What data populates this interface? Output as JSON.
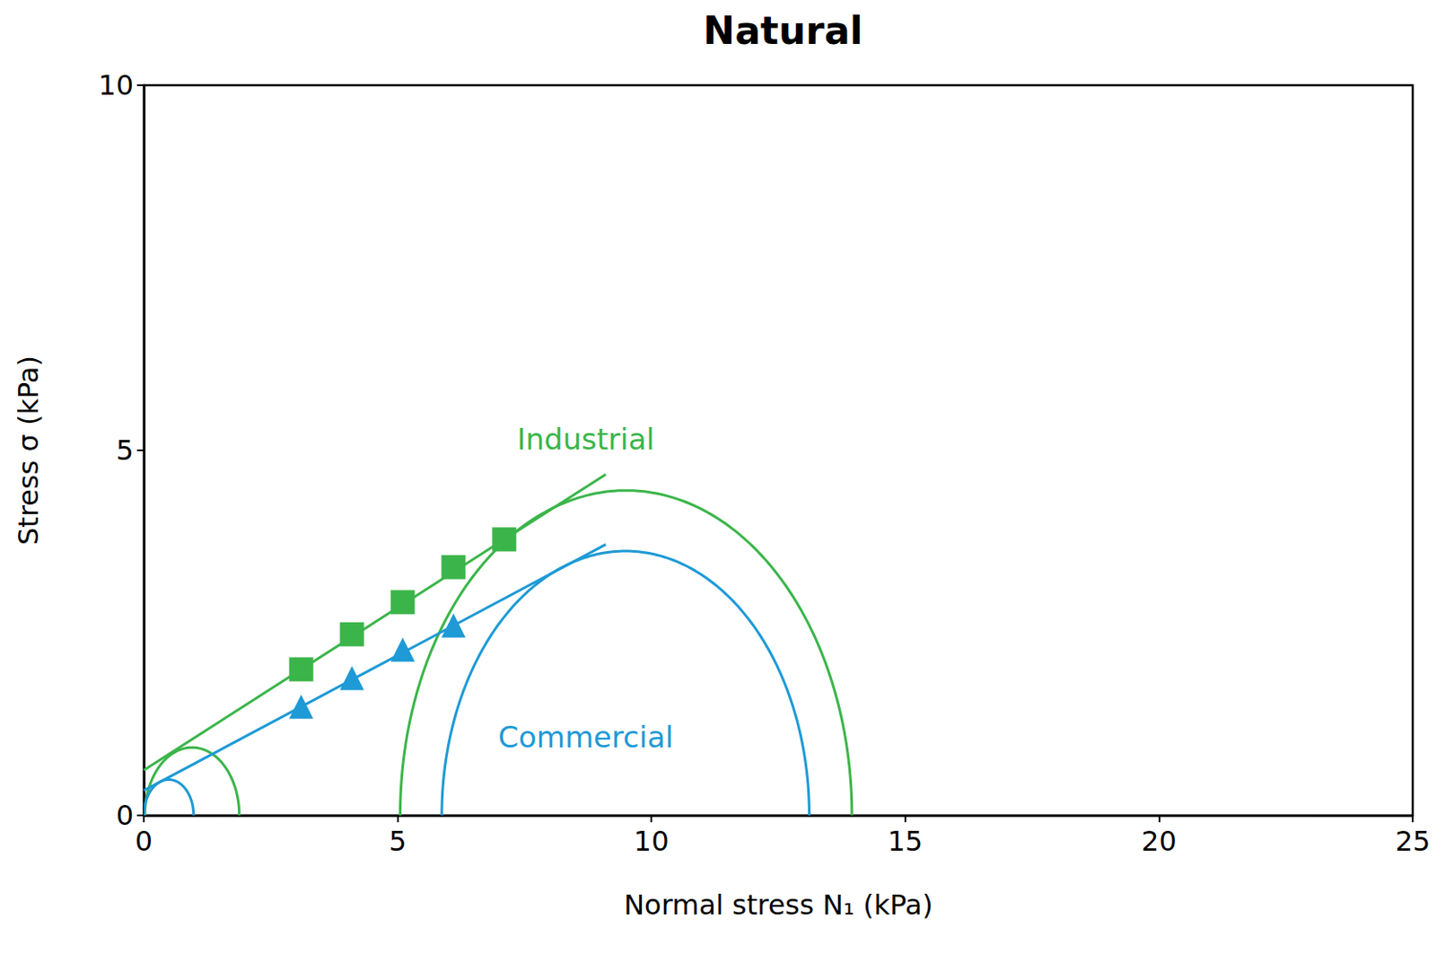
{
  "chart_data": {
    "type": "scatter",
    "title": "Natural",
    "x_label": "Normal stress N₁ (kPa)",
    "y_label": "Stress σ (kPa)",
    "xlim": [
      0,
      25
    ],
    "xticks": [
      0,
      5,
      10,
      15,
      20,
      25
    ],
    "ylim": [
      0,
      10
    ],
    "yticks": [
      0,
      5,
      10
    ],
    "grid": false,
    "series": [
      {
        "name": "Industrial",
        "color": "#3bb54a",
        "marker": "square",
        "x": [
          3.1,
          4.1,
          5.1,
          6.1,
          7.1
        ],
        "values": [
          2.0,
          2.48,
          2.92,
          3.4,
          3.78
        ],
        "fit_line": {
          "x": [
            0,
            9.1
          ],
          "y": [
            0.62,
            4.67
          ]
        },
        "mohr_circles": [
          {
            "center": 0.95,
            "radius": 0.93
          },
          {
            "center": 9.5,
            "radius": 4.45
          }
        ]
      },
      {
        "name": "Commercial",
        "color": "#1e9ad6",
        "marker": "triangle",
        "x": [
          3.1,
          4.1,
          5.1,
          6.1
        ],
        "values": [
          1.49,
          1.88,
          2.27,
          2.6
        ],
        "fit_line": {
          "x": [
            0,
            9.1
          ],
          "y": [
            0.34,
            3.71
          ]
        },
        "mohr_circles": [
          {
            "center": 0.49,
            "radius": 0.49
          },
          {
            "center": 9.49,
            "radius": 3.62
          }
        ]
      }
    ]
  }
}
